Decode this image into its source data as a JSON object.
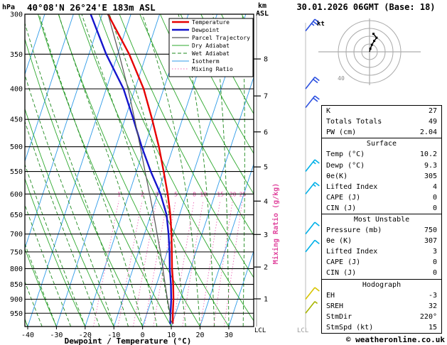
{
  "header": {
    "pressure_unit": "hPa",
    "station_title": "40°08'N 26°24'E 183m ASL",
    "altitude_axis_label_line1": "km",
    "altitude_axis_label_line2": "ASL",
    "date_title": "30.01.2026 06GMT (Base: 18)"
  },
  "chart_data": {
    "type": "line",
    "variant": "skew-t-log-p-sounding",
    "xlabel": "Dewpoint / Temperature (°C)",
    "mixing_ratio_axis_label": "Mixing Ratio (g/kg)",
    "lcl_label": "LCL",
    "pressure_range": [
      300,
      1000
    ],
    "pressure_ticks": [
      300,
      350,
      400,
      450,
      500,
      550,
      600,
      650,
      700,
      750,
      800,
      850,
      900,
      950
    ],
    "temp_ticks": [
      -40,
      -30,
      -20,
      -10,
      0,
      10,
      20,
      30
    ],
    "km_ticks": [
      8,
      7,
      6,
      5,
      4,
      3,
      2,
      1
    ],
    "mixing_ratio_labels": [
      1,
      2,
      3,
      4,
      5,
      8,
      10,
      15,
      20,
      25
    ],
    "legend": [
      {
        "label": "Temperature",
        "color": "#e60000",
        "width": 2.4,
        "dash": ""
      },
      {
        "label": "Dewpoint",
        "color": "#1414cc",
        "width": 2.4,
        "dash": ""
      },
      {
        "label": "Parcel Trajectory",
        "color": "#555555",
        "width": 1.2,
        "dash": ""
      },
      {
        "label": "Dry Adiabat",
        "color": "#2ca82c",
        "width": 0.9,
        "dash": ""
      },
      {
        "label": "Wet Adiabat",
        "color": "#1e8a1e",
        "width": 0.9,
        "dash": "5 3"
      },
      {
        "label": "Isotherm",
        "color": "#2f9be8",
        "width": 0.9,
        "dash": ""
      },
      {
        "label": "Mixing Ratio",
        "color": "#ef6ab8",
        "width": 0.9,
        "dash": "1.5 2.5"
      }
    ],
    "series": [
      {
        "name": "Temperature",
        "points": [
          [
            990,
            10.2
          ],
          [
            950,
            9.0
          ],
          [
            900,
            7.6
          ],
          [
            850,
            5.8
          ],
          [
            800,
            3.6
          ],
          [
            750,
            1.6
          ],
          [
            700,
            -0.6
          ],
          [
            650,
            -3.2
          ],
          [
            600,
            -6.5
          ],
          [
            550,
            -10.5
          ],
          [
            500,
            -15.0
          ],
          [
            450,
            -20.5
          ],
          [
            400,
            -27.0
          ],
          [
            350,
            -36.0
          ],
          [
            300,
            -48.0
          ]
        ]
      },
      {
        "name": "Dewpoint",
        "points": [
          [
            990,
            9.3
          ],
          [
            950,
            8.2
          ],
          [
            900,
            6.8
          ],
          [
            850,
            5.0
          ],
          [
            800,
            2.8
          ],
          [
            750,
            0.8
          ],
          [
            700,
            -1.6
          ],
          [
            650,
            -4.5
          ],
          [
            600,
            -9.0
          ],
          [
            550,
            -15.0
          ],
          [
            500,
            -21.0
          ],
          [
            450,
            -27.0
          ],
          [
            400,
            -34.0
          ],
          [
            350,
            -44.0
          ],
          [
            300,
            -54.0
          ]
        ]
      },
      {
        "name": "Parcel Trajectory",
        "points": [
          [
            990,
            10.2
          ],
          [
            975,
            9.0
          ],
          [
            950,
            8.0
          ],
          [
            900,
            5.5
          ],
          [
            850,
            3.0
          ],
          [
            800,
            0.4
          ],
          [
            750,
            -2.4
          ],
          [
            700,
            -5.6
          ],
          [
            650,
            -9.0
          ],
          [
            600,
            -12.8
          ],
          [
            550,
            -17.0
          ],
          [
            500,
            -21.5
          ],
          [
            450,
            -26.6
          ],
          [
            400,
            -32.4
          ],
          [
            350,
            -39.5
          ],
          [
            300,
            -48.0
          ]
        ]
      }
    ],
    "wind_barbs": [
      {
        "pressure": 320,
        "speed_kt": 25,
        "color": "#2b50e0"
      },
      {
        "pressure": 400,
        "speed_kt": 20,
        "color": "#2b50e0"
      },
      {
        "pressure": 430,
        "speed_kt": 20,
        "color": "#2b50e0"
      },
      {
        "pressure": 550,
        "speed_kt": 15,
        "color": "#00b0e8"
      },
      {
        "pressure": 600,
        "speed_kt": 15,
        "color": "#00b0e8"
      },
      {
        "pressure": 700,
        "speed_kt": 10,
        "color": "#00b0e8"
      },
      {
        "pressure": 750,
        "speed_kt": 10,
        "color": "#00b0e8"
      },
      {
        "pressure": 900,
        "speed_kt": 10,
        "color": "#d8c400"
      },
      {
        "pressure": 950,
        "speed_kt": 5,
        "color": "#a8b400"
      }
    ]
  },
  "hodograph": {
    "unit_label": "kt",
    "ring_label": "40",
    "rings_kt": [
      10,
      20,
      30,
      40
    ],
    "trace_uv_kt": [
      [
        0,
        0
      ],
      [
        1,
        4
      ],
      [
        3,
        9
      ],
      [
        6,
        14
      ],
      [
        9,
        18
      ],
      [
        5,
        23
      ]
    ]
  },
  "panel": {
    "sections": [
      {
        "header": null,
        "rows": [
          {
            "label": "K",
            "value": "27"
          },
          {
            "label": "Totals Totals",
            "value": "49"
          },
          {
            "label": "PW (cm)",
            "value": "2.04"
          }
        ]
      },
      {
        "header": "Surface",
        "rows": [
          {
            "label": "Temp (°C)",
            "value": "10.2"
          },
          {
            "label": "Dewp (°C)",
            "value": "9.3"
          },
          {
            "label": "θe(K)",
            "value": "305"
          },
          {
            "label": "Lifted Index",
            "value": "4"
          },
          {
            "label": "CAPE (J)",
            "value": "0"
          },
          {
            "label": "CIN (J)",
            "value": "0"
          }
        ]
      },
      {
        "header": "Most Unstable",
        "rows": [
          {
            "label": "Pressure (mb)",
            "value": "750"
          },
          {
            "label": "θe (K)",
            "value": "307"
          },
          {
            "label": "Lifted Index",
            "value": "3"
          },
          {
            "label": "CAPE (J)",
            "value": "0"
          },
          {
            "label": "CIN (J)",
            "value": "0"
          }
        ]
      },
      {
        "header": "Hodograph",
        "rows": [
          {
            "label": "EH",
            "value": "-3"
          },
          {
            "label": "SREH",
            "value": "32"
          },
          {
            "label": "StmDir",
            "value": "220°"
          },
          {
            "label": "StmSpd (kt)",
            "value": "15"
          }
        ]
      }
    ]
  },
  "footer": {
    "copyright": "© weatheronline.co.uk"
  }
}
